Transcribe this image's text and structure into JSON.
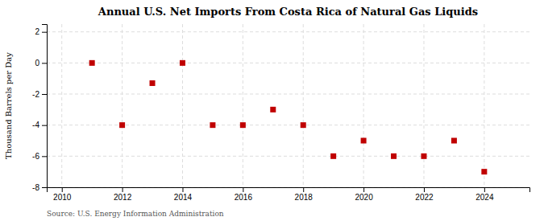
{
  "chart_data": {
    "type": "scatter",
    "title": "Annual U.S. Net Imports From Costa Rica of Natural Gas Liquids",
    "y_label": "Thousand Barrels per Day",
    "annotation": "Source: U.S. Energy Information Administration",
    "x": [
      2011,
      2012,
      2013,
      2014,
      2015,
      2016,
      2017,
      2018,
      2019,
      2020,
      2021,
      2022,
      2023,
      2024
    ],
    "values": [
      0,
      -4,
      -1.3,
      0,
      -4,
      -4,
      -3.0,
      -4,
      -6,
      -5,
      -6,
      -6,
      -5,
      -7
    ],
    "color": "#c00000",
    "marker": "square",
    "xlim": [
      2009.5,
      2025.5
    ],
    "xticks": [
      2010,
      2012,
      2014,
      2016,
      2018,
      2020,
      2022,
      2024
    ],
    "ylim": [
      -8,
      2.5
    ],
    "yticks": [
      -8,
      -6,
      -4,
      -2,
      0,
      2
    ],
    "grid": true
  }
}
